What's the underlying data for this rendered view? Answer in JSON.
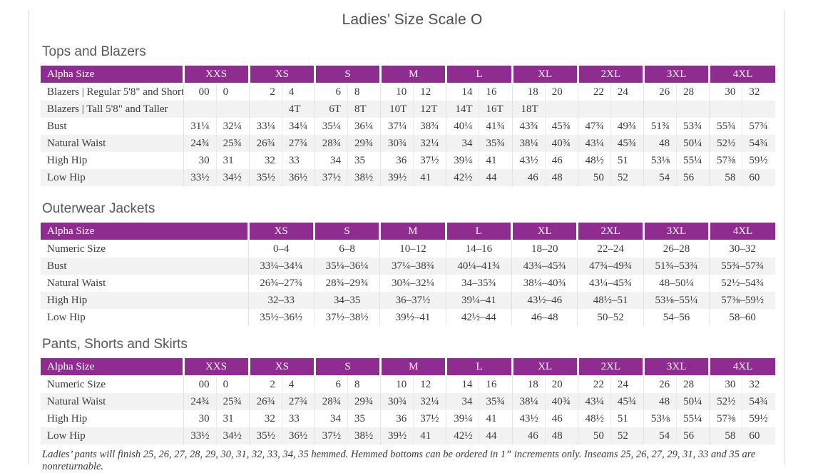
{
  "page": {
    "title": "Ladies’ Size Scale O",
    "footnote": "Ladies’ pants will finish 25, 26, 27, 28, 29, 30, 31, 32, 33, 34, 35 hemmed. Hemmed bottoms can be ordered in 1” increments only. Inseams 25, 26, 27, 29, 31, 33 and 35 are nonreturnable."
  },
  "colors": {
    "header_purple": "#8e2c90",
    "row_alt": "#f2f2f2",
    "heading_gray": "#595959",
    "title_gray": "#4d4d4d",
    "text": "#3a3a3a",
    "divider": "#e3e3e3",
    "page_border": "#d8d8d8"
  },
  "tables": {
    "tops": {
      "section_title": "Tops and Blazers",
      "label_header": "Alpha Size",
      "sizes": [
        "XXS",
        "XS",
        "S",
        "M",
        "L",
        "XL",
        "2XL",
        "3XL",
        "4XL"
      ],
      "rows": [
        {
          "label": "Blazers | Regular 5'8\" and Shorter",
          "values": [
            "00",
            "0",
            "2",
            "4",
            "6",
            "8",
            "10",
            "12",
            "14",
            "16",
            "18",
            "20",
            "22",
            "24",
            "26",
            "28",
            "30",
            "32"
          ]
        },
        {
          "label": "Blazers | Tall 5'8\" and Taller",
          "values": [
            "",
            "",
            "",
            "4T",
            "6T",
            "8T",
            "10T",
            "12T",
            "14T",
            "16T",
            "18T",
            "",
            "",
            "",
            "",
            "",
            "",
            ""
          ]
        },
        {
          "label": "Bust",
          "values": [
            "31¼",
            "32¼",
            "33¼",
            "34¼",
            "35¼",
            "36¼",
            "37¼",
            "38¾",
            "40¼",
            "41¾",
            "43¾",
            "45¾",
            "47¾",
            "49¾",
            "51¾",
            "53¾",
            "55¾",
            "57¾"
          ]
        },
        {
          "label": "Natural Waist",
          "values": [
            "24¾",
            "25¾",
            "26¾",
            "27¾",
            "28¾",
            "29¾",
            "30¾",
            "32¼",
            "34",
            "35¾",
            "38¼",
            "40¾",
            "43¼",
            "45¾",
            "48",
            "50¼",
            "52½",
            "54¾"
          ]
        },
        {
          "label": "High Hip",
          "values": [
            "30",
            "31",
            "32",
            "33",
            "34",
            "35",
            "36",
            "37½",
            "39¼",
            "41",
            "43½",
            "46",
            "48½",
            "51",
            "53⅛",
            "55¼",
            "57⅜",
            "59½"
          ]
        },
        {
          "label": "Low Hip",
          "values": [
            "33½",
            "34½",
            "35½",
            "36½",
            "37½",
            "38½",
            "39½",
            "41",
            "42½",
            "44",
            "46",
            "48",
            "50",
            "52",
            "54",
            "56",
            "58",
            "60"
          ]
        }
      ]
    },
    "outerwear": {
      "section_title": "Outerwear Jackets",
      "label_header": "Alpha Size",
      "sizes": [
        "XS",
        "S",
        "M",
        "L",
        "XL",
        "2XL",
        "3XL",
        "4XL"
      ],
      "rows": [
        {
          "label": "Numeric Size",
          "values": [
            "0–4",
            "6–8",
            "10–12",
            "14–16",
            "18–20",
            "22–24",
            "26–28",
            "30–32"
          ]
        },
        {
          "label": "Bust",
          "values": [
            "33¼–34¼",
            "35¼–36¼",
            "37¼–38¾",
            "40¼–41¾",
            "43¾–45¾",
            "47¾–49¾",
            "51¾–53¾",
            "55¾–57¾"
          ]
        },
        {
          "label": "Natural Waist",
          "values": [
            "26¾–27¾",
            "28¾–29¾",
            "30¾–32¼",
            "34–35¾",
            "38¼–40¾",
            "43¼–45¾",
            "48–50¼",
            "52½–54¾"
          ]
        },
        {
          "label": "High Hip",
          "values": [
            "32–33",
            "34–35",
            "36–37½",
            "39¼–41",
            "43½–46",
            "48½–51",
            "53⅛–55¼",
            "57⅜–59½"
          ]
        },
        {
          "label": "Low Hip",
          "values": [
            "35½–36½",
            "37½–38½",
            "39½–41",
            "42½–44",
            "46–48",
            "50–52",
            "54–56",
            "58–60"
          ]
        }
      ]
    },
    "pants": {
      "section_title": "Pants, Shorts and Skirts",
      "label_header": "Alpha Size",
      "sizes": [
        "XXS",
        "XS",
        "S",
        "M",
        "L",
        "XL",
        "2XL",
        "3XL",
        "4XL"
      ],
      "rows": [
        {
          "label": "Numeric Size",
          "values": [
            "00",
            "0",
            "2",
            "4",
            "6",
            "8",
            "10",
            "12",
            "14",
            "16",
            "18",
            "20",
            "22",
            "24",
            "26",
            "28",
            "30",
            "32"
          ]
        },
        {
          "label": "Natural Waist",
          "values": [
            "24¾",
            "25¾",
            "26¾",
            "27¾",
            "28¾",
            "29¾",
            "30¾",
            "32¼",
            "34",
            "35¾",
            "38¼",
            "40¾",
            "43¼",
            "45¾",
            "48",
            "50¼",
            "52½",
            "54¾"
          ]
        },
        {
          "label": "High Hip",
          "values": [
            "30",
            "31",
            "32",
            "33",
            "34",
            "35",
            "36",
            "37½",
            "39¼",
            "41",
            "43½",
            "46",
            "48½",
            "51",
            "53⅛",
            "55¼",
            "57⅜",
            "59½"
          ]
        },
        {
          "label": "Low Hip",
          "values": [
            "33½",
            "34½",
            "35½",
            "36½",
            "37½",
            "38½",
            "39½",
            "41",
            "42½",
            "44",
            "46",
            "48",
            "50",
            "52",
            "54",
            "56",
            "58",
            "60"
          ]
        }
      ]
    }
  }
}
